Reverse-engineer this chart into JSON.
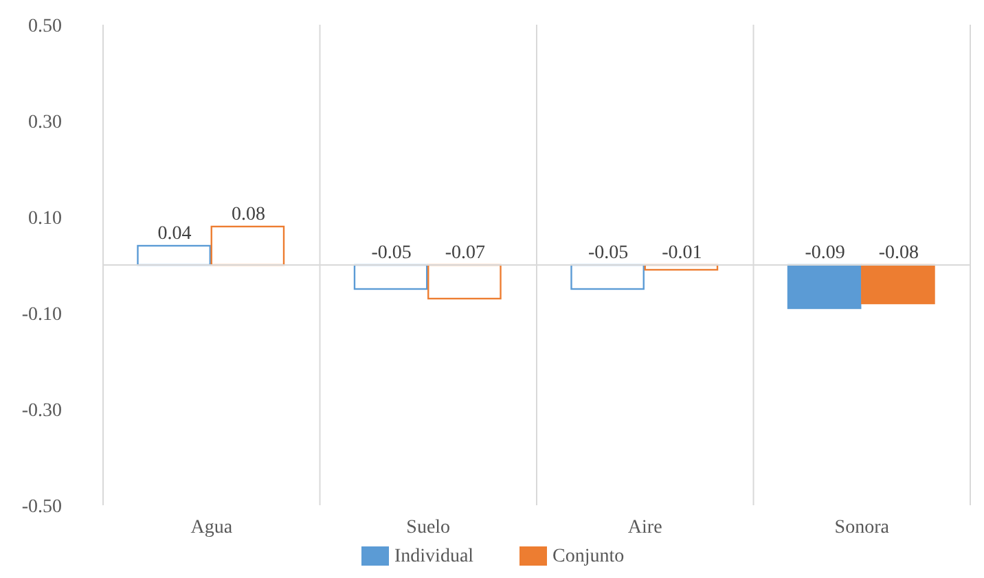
{
  "chart_data": {
    "type": "bar",
    "categories": [
      "Agua",
      "Suelo",
      "Aire",
      "Sonora"
    ],
    "series": [
      {
        "name": "Individual",
        "color": "#5b9bd5",
        "colors": [
          "#ffffff",
          "#ffffff",
          "#ffffff",
          "#5b9bd5"
        ],
        "values": [
          0.04,
          -0.05,
          -0.05,
          -0.09
        ]
      },
      {
        "name": "Conjunto",
        "color": "#ed7d31",
        "colors": [
          "#ffffff",
          "#ffffff",
          "#ffffff",
          "#ed7d31"
        ],
        "values": [
          0.08,
          -0.07,
          -0.01,
          -0.08
        ]
      }
    ],
    "ylim": [
      -0.5,
      0.5
    ],
    "yticks": [
      {
        "value": -0.5,
        "label": "-0.50"
      },
      {
        "value": -0.3,
        "label": "-0.30"
      },
      {
        "value": -0.1,
        "label": "-0.10"
      },
      {
        "value": 0.1,
        "label": "0.10"
      },
      {
        "value": 0.3,
        "label": "0.30"
      },
      {
        "value": 0.5,
        "label": "0.50"
      }
    ],
    "grid": "x",
    "data_labels": true,
    "legend": "bottom"
  }
}
